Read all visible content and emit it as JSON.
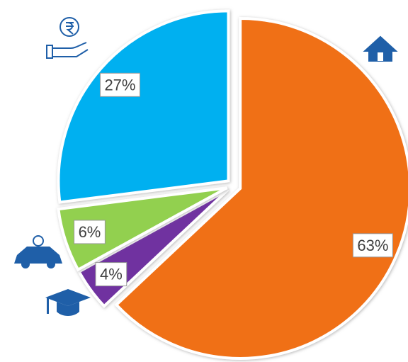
{
  "chart_data": {
    "type": "pie",
    "categories": [
      null,
      null,
      null,
      null
    ],
    "values": [
      63,
      4,
      6,
      27
    ],
    "value_labels": [
      "63%",
      "4%",
      "6%",
      "27%"
    ],
    "colors": [
      "#f07019",
      "#7030a0",
      "#92d050",
      "#00b0f0"
    ]
  }
}
